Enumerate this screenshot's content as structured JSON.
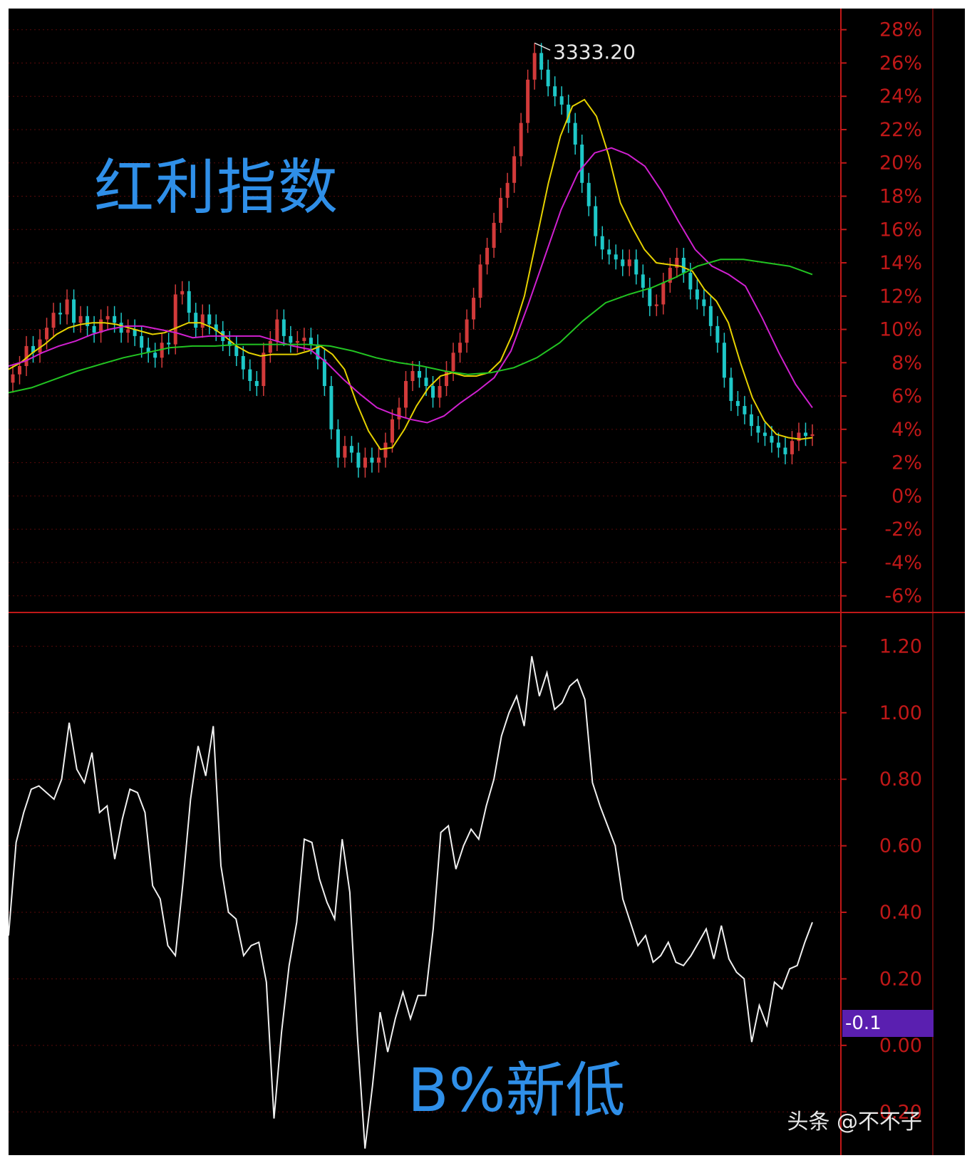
{
  "colors": {
    "background": "#000000",
    "axis": "#c01818",
    "grid": "#5a0a0a",
    "up_candle": "#d23a3a",
    "down_candle": "#1ec8c8",
    "ma_short": "#e6d200",
    "ma_mid": "#d020d0",
    "ma_long": "#22c422",
    "indicator_line": "#f0f0f0",
    "title_blue": "#2f8fe8",
    "badge": "#5a1fb0"
  },
  "titles": {
    "top": "红利指数",
    "bottom": "B%新低"
  },
  "peak_label": "3333.20",
  "current_badge": "-0.1",
  "watermark": "头条 @不不子",
  "chart_data": [
    {
      "type": "candlestick",
      "title": "红利指数",
      "y_axis_ticks": [
        "28%",
        "26%",
        "24%",
        "22%",
        "20%",
        "18%",
        "16%",
        "14%",
        "12%",
        "10%",
        "8%",
        "6%",
        "4%",
        "2%",
        "0%",
        "-2%",
        "-4%",
        "-6%"
      ],
      "ylim": [
        -7,
        28.5
      ],
      "peak_annotation": "3333.20",
      "closes": [
        7.3,
        7.8,
        9.0,
        8.6,
        9.4,
        10.1,
        11.0,
        10.9,
        11.8,
        10.4,
        10.8,
        10.2,
        9.8,
        10.6,
        10.8,
        10.4,
        9.8,
        10.0,
        9.6,
        8.9,
        8.6,
        8.3,
        9.2,
        9.1,
        12.1,
        12.3,
        11.0,
        10.1,
        10.9,
        10.3,
        9.9,
        9.3,
        9.0,
        8.4,
        7.6,
        6.9,
        6.6,
        8.6,
        9.3,
        10.6,
        9.6,
        9.2,
        9.3,
        9.5,
        9.1,
        8.2,
        6.6,
        4.0,
        2.3,
        3.0,
        2.6,
        1.7,
        2.3,
        2.0,
        2.3,
        3.2,
        4.6,
        5.3,
        6.9,
        7.5,
        7.1,
        6.6,
        5.9,
        6.6,
        7.5,
        8.6,
        9.2,
        10.6,
        11.9,
        13.9,
        14.9,
        16.4,
        17.9,
        18.8,
        20.4,
        22.4,
        25.0,
        26.6,
        25.6,
        24.6,
        24.0,
        23.5,
        22.4,
        21.1,
        18.8,
        17.4,
        15.6,
        14.8,
        14.5,
        14.2,
        13.8,
        14.2,
        13.3,
        12.5,
        11.4,
        11.5,
        12.8,
        13.7,
        14.3,
        13.4,
        12.4,
        11.8,
        11.4,
        10.2,
        9.2,
        7.1,
        5.7,
        5.4,
        4.9,
        4.2,
        3.8,
        3.6,
        3.2,
        2.9,
        2.5,
        3.3,
        3.8,
        3.6,
        3.7
      ],
      "series": [
        {
          "name": "",
          "key": "ma_short",
          "values": [
            7.6,
            8.0,
            8.6,
            9.1,
            9.7,
            10.1,
            10.3,
            10.4,
            10.4,
            10.3,
            10.1,
            9.9,
            9.7,
            9.8,
            10.1,
            10.4,
            10.4,
            10.1,
            9.6,
            9.0,
            8.6,
            8.4,
            8.5,
            8.5,
            8.5,
            8.7,
            9.0,
            8.5,
            7.6,
            5.6,
            3.9,
            2.8,
            2.9,
            4.0,
            5.4,
            6.5,
            7.2,
            7.4,
            7.2,
            7.2,
            7.4,
            8.1,
            9.7,
            12.0,
            15.4,
            18.8,
            21.6,
            23.4,
            23.8,
            22.8,
            20.5,
            17.6,
            16.1,
            14.8,
            14.0,
            13.9,
            13.8,
            13.5,
            12.4,
            11.7,
            10.4,
            8.0,
            5.9,
            4.5,
            3.7,
            3.5,
            3.4,
            3.5
          ]
        },
        {
          "name": "",
          "key": "ma_mid",
          "values": [
            7.8,
            8.1,
            8.6,
            9.0,
            9.3,
            9.7,
            10.0,
            10.2,
            10.2,
            10.0,
            9.8,
            9.5,
            9.6,
            9.6,
            9.6,
            9.6,
            9.3,
            9.0,
            8.8,
            8.0,
            7.0,
            6.1,
            5.3,
            4.9,
            4.6,
            4.4,
            4.8,
            5.6,
            6.3,
            7.1,
            8.7,
            11.4,
            14.3,
            17.2,
            19.4,
            20.6,
            20.9,
            20.5,
            19.8,
            18.3,
            16.5,
            14.8,
            13.8,
            13.3,
            12.6,
            10.7,
            8.6,
            6.7,
            5.3
          ]
        },
        {
          "name": "",
          "key": "ma_long",
          "values": [
            6.2,
            6.5,
            7.0,
            7.5,
            7.9,
            8.3,
            8.6,
            8.9,
            9.0,
            9.0,
            9.1,
            9.1,
            9.1,
            9.1,
            9.0,
            8.7,
            8.3,
            8.0,
            7.8,
            7.5,
            7.3,
            7.4,
            7.7,
            8.3,
            9.2,
            10.5,
            11.6,
            12.1,
            12.5,
            13.1,
            13.8,
            14.2,
            14.2,
            14.0,
            13.8,
            13.3
          ]
        }
      ]
    },
    {
      "type": "line",
      "title": "B%新低",
      "y_axis_ticks": [
        "1.20",
        "1.00",
        "0.80",
        "0.60",
        "0.40",
        "0.20",
        "0.00",
        "-0.20"
      ],
      "ylim": [
        -0.33,
        1.28
      ],
      "series": [
        {
          "name": "",
          "key": "indicator_line",
          "values": [
            0.33,
            0.61,
            0.7,
            0.77,
            0.78,
            0.76,
            0.74,
            0.8,
            0.97,
            0.83,
            0.79,
            0.88,
            0.7,
            0.72,
            0.56,
            0.68,
            0.77,
            0.76,
            0.7,
            0.48,
            0.44,
            0.3,
            0.27,
            0.49,
            0.74,
            0.9,
            0.81,
            0.96,
            0.54,
            0.4,
            0.38,
            0.27,
            0.3,
            0.31,
            0.19,
            -0.22,
            0.04,
            0.24,
            0.37,
            0.62,
            0.61,
            0.5,
            0.43,
            0.38,
            0.62,
            0.46,
            0.03,
            -0.31,
            -0.12,
            0.1,
            -0.02,
            0.08,
            0.16,
            0.08,
            0.15,
            0.15,
            0.35,
            0.64,
            0.66,
            0.53,
            0.6,
            0.65,
            0.62,
            0.72,
            0.8,
            0.93,
            1.0,
            1.05,
            0.96,
            1.17,
            1.05,
            1.12,
            1.01,
            1.03,
            1.08,
            1.1,
            1.04,
            0.79,
            0.72,
            0.66,
            0.6,
            0.44,
            0.37,
            0.3,
            0.33,
            0.25,
            0.27,
            0.31,
            0.25,
            0.24,
            0.27,
            0.31,
            0.35,
            0.26,
            0.36,
            0.26,
            0.22,
            0.2,
            0.01,
            0.12,
            0.06,
            0.19,
            0.17,
            0.23,
            0.24,
            0.31,
            0.37
          ]
        }
      ]
    }
  ]
}
